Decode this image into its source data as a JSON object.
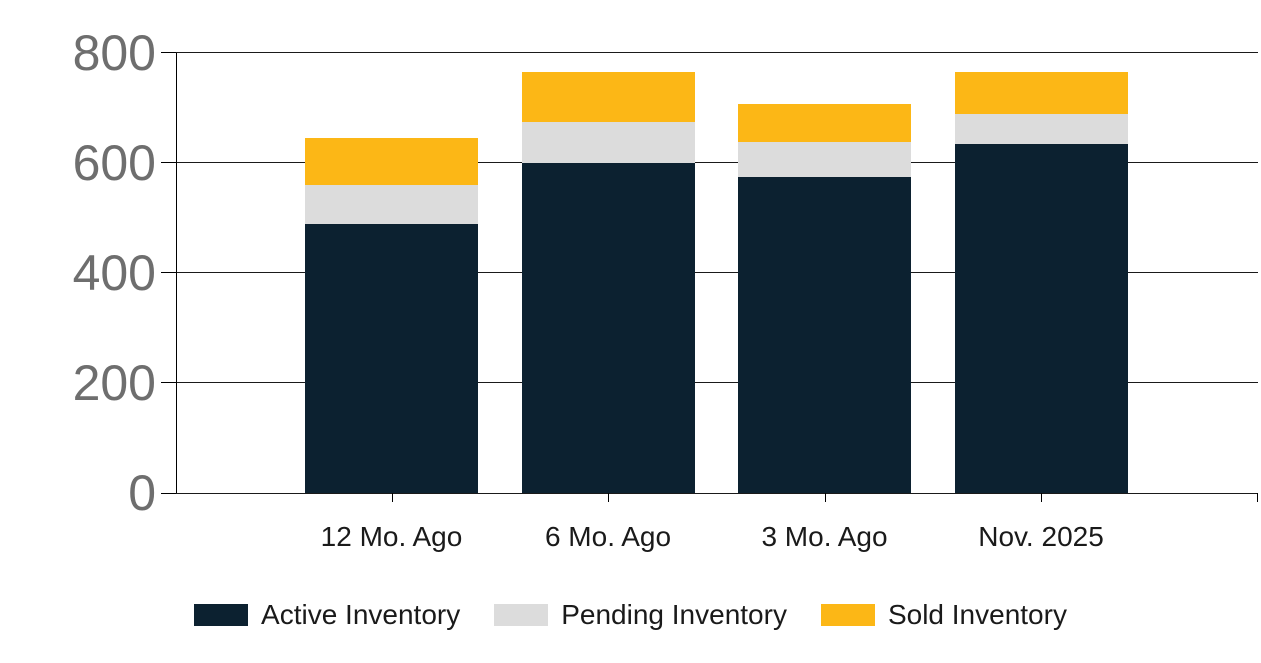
{
  "chart_data": {
    "type": "bar",
    "stacked": true,
    "title": "",
    "xlabel": "",
    "ylabel": "",
    "categories": [
      "12 Mo. Ago",
      "6 Mo. Ago",
      "3 Mo. Ago",
      "Nov. 2025"
    ],
    "series": [
      {
        "name": "Active Inventory",
        "color": "#0c2130",
        "values": [
          490,
          600,
          575,
          635
        ]
      },
      {
        "name": "Pending Inventory",
        "color": "#dcdcdc",
        "values": [
          70,
          75,
          63,
          55
        ]
      },
      {
        "name": "Sold Inventory",
        "color": "#fcb716",
        "values": [
          85,
          90,
          70,
          75
        ]
      }
    ],
    "stack_totals": [
      645,
      765,
      708,
      765
    ],
    "ylim": [
      0,
      800
    ],
    "y_ticks": [
      "0",
      "200",
      "400",
      "600",
      "800"
    ],
    "grid": true,
    "legend_position": "bottom"
  },
  "styles": {
    "background": "#ffffff",
    "grid_color": "#1a1a1a",
    "axis_color": "#000000",
    "y_label_color": "#6e6e6e",
    "x_label_color": "#1a1a1a",
    "legend_text_color": "#1a1a1a"
  }
}
